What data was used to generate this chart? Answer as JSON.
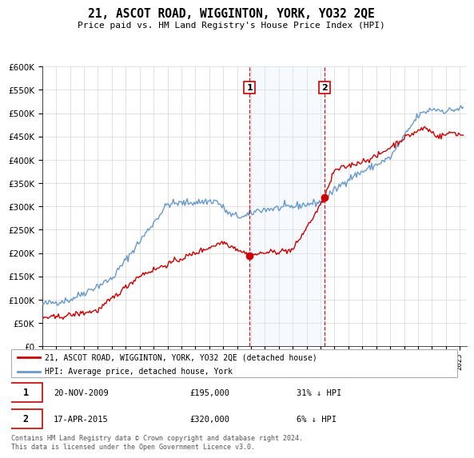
{
  "title": "21, ASCOT ROAD, WIGGINTON, YORK, YO32 2QE",
  "subtitle": "Price paid vs. HM Land Registry's House Price Index (HPI)",
  "legend_line1": "21, ASCOT ROAD, WIGGINTON, YORK, YO32 2QE (detached house)",
  "legend_line2": "HPI: Average price, detached house, York",
  "transaction1_date": "20-NOV-2009",
  "transaction1_price": "£195,000",
  "transaction1_hpi": "31% ↓ HPI",
  "transaction1_year": 2009.89,
  "transaction1_value": 195000,
  "transaction2_date": "17-APR-2015",
  "transaction2_price": "£320,000",
  "transaction2_hpi": "6% ↓ HPI",
  "transaction2_year": 2015.29,
  "transaction2_value": 320000,
  "red_color": "#cc0000",
  "blue_color": "#6699cc",
  "shade_color": "#ddeeff",
  "footer_text": "Contains HM Land Registry data © Crown copyright and database right 2024.\nThis data is licensed under the Open Government Licence v3.0.",
  "ylim_min": 0,
  "ylim_max": 600000,
  "xlim_min": 1995,
  "xlim_max": 2025.5
}
